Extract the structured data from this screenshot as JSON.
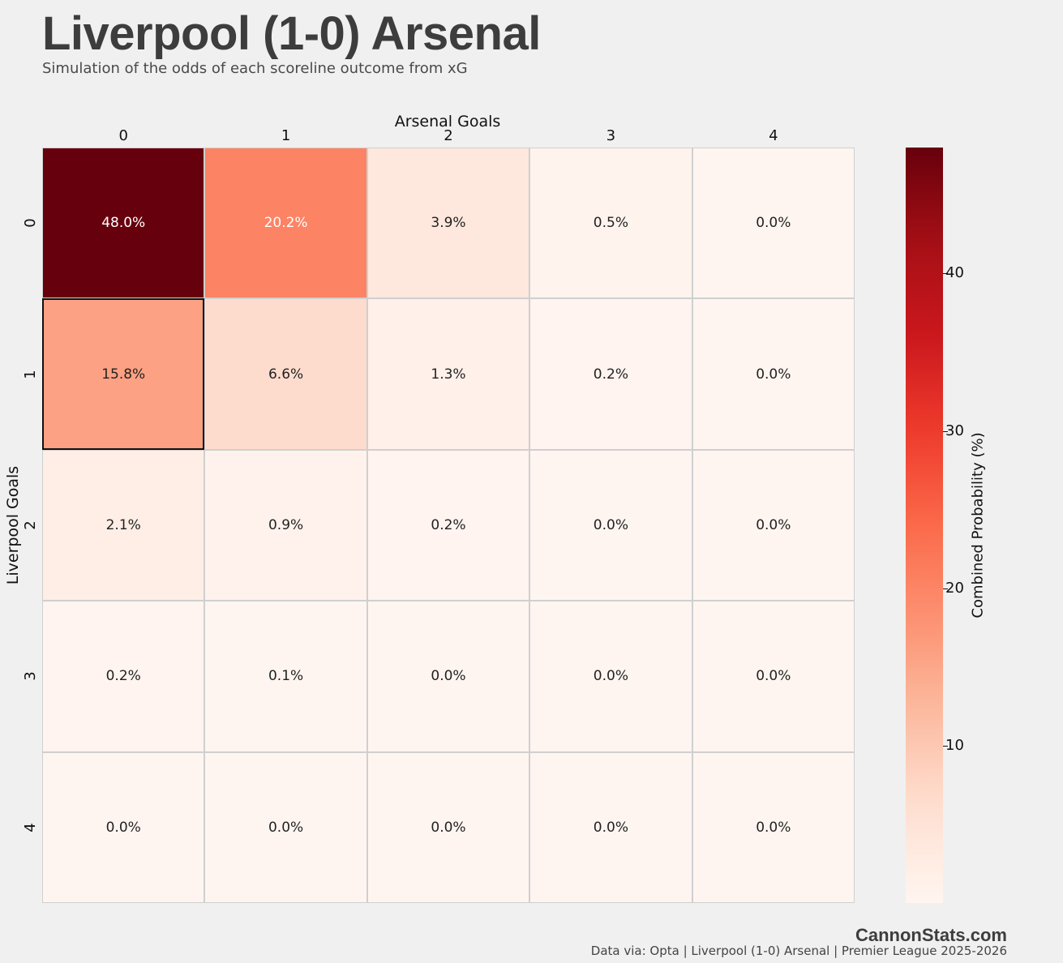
{
  "header": {
    "title": "Liverpool (1-0) Arsenal",
    "subtitle": "Simulation of the odds of each scoreline outcome from xG"
  },
  "footer": {
    "brand": "CannonStats.com",
    "source": "Data via: Opta | Liverpool (1-0) Arsenal | Premier League 2025-2026"
  },
  "chart_data": {
    "type": "heatmap",
    "xlabel": "Arsenal Goals",
    "ylabel": "Liverpool Goals",
    "x_categories": [
      "0",
      "1",
      "2",
      "3",
      "4"
    ],
    "y_categories": [
      "0",
      "1",
      "2",
      "3",
      "4"
    ],
    "x_axis_position": "top",
    "values": [
      [
        48.0,
        20.2,
        3.9,
        0.5,
        0.0
      ],
      [
        15.8,
        6.6,
        1.3,
        0.2,
        0.0
      ],
      [
        2.1,
        0.9,
        0.2,
        0.0,
        0.0
      ],
      [
        0.2,
        0.1,
        0.0,
        0.0,
        0.0
      ],
      [
        0.0,
        0.0,
        0.0,
        0.0,
        0.0
      ]
    ],
    "cell_labels": [
      [
        "48.0%",
        "20.2%",
        "3.9%",
        "0.5%",
        "0.0%"
      ],
      [
        "15.8%",
        "6.6%",
        "1.3%",
        "0.2%",
        "0.0%"
      ],
      [
        "2.1%",
        "0.9%",
        "0.2%",
        "0.0%",
        "0.0%"
      ],
      [
        "0.2%",
        "0.1%",
        "0.0%",
        "0.0%",
        "0.0%"
      ],
      [
        "0.0%",
        "0.0%",
        "0.0%",
        "0.0%",
        "0.0%"
      ]
    ],
    "highlighted_cell": {
      "liverpool_goals": 1,
      "arsenal_goals": 0
    },
    "colorbar": {
      "label": "Combined Probability (%)",
      "range": [
        0,
        48
      ],
      "ticks": [
        10,
        20,
        30,
        40
      ],
      "colormap": "Reds"
    },
    "colors": {
      "grid_line": "#cfcfcf",
      "highlight_border": "#111111",
      "background": "#f0f0f0"
    }
  }
}
